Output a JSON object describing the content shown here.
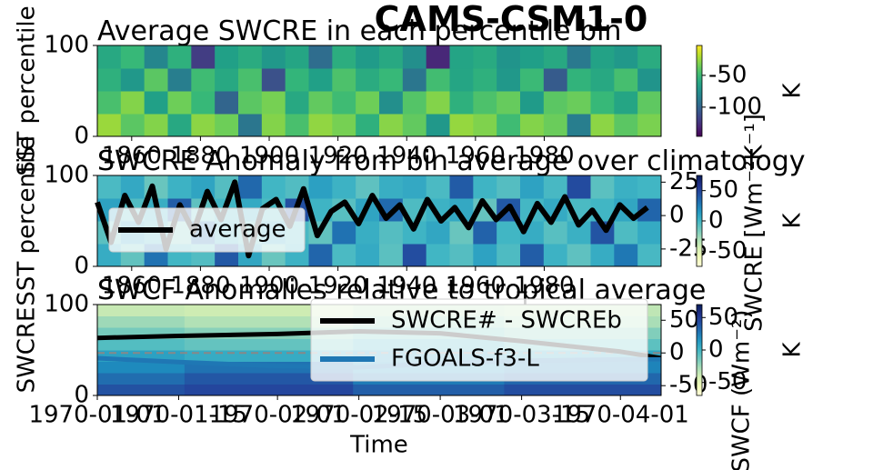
{
  "chart_data": [
    {
      "type": "heatmap",
      "suptitle": "CAMS-CSM1-0",
      "title": "Average SWCRE in each percentile bin",
      "ylabel": "SST percentile",
      "xlim": [
        1850,
        2014
      ],
      "xticks": [
        1860,
        1880,
        1900,
        1920,
        1940,
        1960,
        1980
      ],
      "ylim": [
        0,
        100
      ],
      "yticks": [
        0,
        100
      ],
      "colormap": "viridis",
      "clim": [
        -146,
        -3
      ],
      "colorbar_ticks": [
        -50,
        -100
      ],
      "colorbar_label": "K",
      "z": [
        [
          -25,
          -40,
          -30,
          -60,
          -28,
          -35,
          -90,
          -30,
          -45,
          -27,
          -33,
          -55,
          -29,
          -38,
          -70,
          -26,
          -31,
          -48,
          -30,
          -36,
          -85,
          -28,
          -40,
          -32
        ],
        [
          -45,
          -30,
          -65,
          -35,
          -50,
          -100,
          -40,
          -33,
          -60,
          -38,
          -48,
          -35,
          -75,
          -42,
          -30,
          -55,
          -44,
          -37,
          -68,
          -40,
          -36,
          -50,
          -62,
          -39
        ],
        [
          -55,
          -70,
          -40,
          -85,
          -48,
          -60,
          -45,
          -110,
          -52,
          -65,
          -44,
          -58,
          -50,
          -90,
          -47,
          -62,
          -55,
          -70,
          -49,
          -105,
          -53,
          -60,
          -46,
          -72
        ],
        [
          -60,
          -50,
          -80,
          -55,
          -120,
          -65,
          -58,
          -70,
          -62,
          -95,
          -57,
          -68,
          -60,
          -75,
          -130,
          -63,
          -59,
          -72,
          -66,
          -60,
          -88,
          -64,
          -70,
          -58
        ]
      ]
    },
    {
      "type": "heatmap",
      "title": "SWCRE Anomaly from bin average over climatology",
      "ylabel": "SST percentile",
      "xlim": [
        1850,
        2014
      ],
      "xticks": [
        1860,
        1880,
        1900,
        1920,
        1940,
        1960,
        1980
      ],
      "ylim": [
        0,
        100
      ],
      "yticks": [
        0,
        100
      ],
      "colormap": "YlGnBu",
      "clim": [
        -75,
        75
      ],
      "colorbar_ticks": [
        50,
        0,
        -50
      ],
      "colorbar_label": "K",
      "z": [
        [
          5,
          -10,
          30,
          0,
          -5,
          40,
          8,
          -12,
          2,
          35,
          -3,
          6,
          -8,
          45,
          0,
          -6,
          10,
          -4,
          38,
          2,
          -9,
          5,
          28,
          -2
        ],
        [
          -8,
          12,
          0,
          -15,
          32,
          3,
          -5,
          9,
          -2,
          -10,
          30,
          4,
          -6,
          1,
          8,
          -12,
          36,
          0,
          5,
          -7,
          3,
          42,
          -4,
          6
        ],
        [
          10,
          -5,
          4,
          38,
          -9,
          0,
          6,
          -3,
          44,
          1,
          -7,
          9,
          33,
          -4,
          2,
          7,
          -11,
          40,
          -1,
          6,
          -3,
          0,
          8,
          35
        ],
        [
          -3,
          7,
          -12,
          2,
          9,
          -6,
          34,
          0,
          -5,
          11,
          2,
          -9,
          4,
          7,
          -3,
          39,
          1,
          -6,
          10,
          -2,
          46,
          -8,
          3,
          0
        ]
      ],
      "y2lim": [
        -38,
        30
      ],
      "y2ticks": [
        25,
        0,
        -25
      ],
      "y2label": "SWCRE [Wm⁻²K⁻¹]",
      "legend": "lower left",
      "x": [
        1850,
        1854,
        1858,
        1862,
        1866,
        1870,
        1874,
        1878,
        1882,
        1886,
        1890,
        1894,
        1898,
        1902,
        1906,
        1910,
        1914,
        1918,
        1922,
        1926,
        1930,
        1934,
        1938,
        1942,
        1946,
        1950,
        1954,
        1958,
        1962,
        1966,
        1970,
        1974,
        1978,
        1982,
        1986,
        1990,
        1994,
        1998,
        2002,
        2006,
        2010
      ],
      "series": [
        {
          "name": "average",
          "color": "#000000",
          "axis": "y2",
          "values": [
            10,
            -20,
            15,
            -5,
            22,
            -25,
            8,
            -12,
            18,
            -3,
            25,
            -30,
            5,
            12,
            -8,
            20,
            -15,
            3,
            10,
            -6,
            15,
            -2,
            8,
            -10,
            12,
            -4,
            6,
            -9,
            11,
            -3,
            7,
            -12,
            9,
            -5,
            14,
            -7,
            4,
            -11,
            8,
            -2,
            6
          ]
        }
      ]
    },
    {
      "type": "heatmap",
      "title": "SWCF Anomalies relative to tropical average",
      "ylabel": "SWCRE",
      "xlabel": "Time",
      "xlim": [
        "1970-01-01",
        "1970-04-08"
      ],
      "xticks": [
        "1970-01-01",
        "1970-01-15",
        "1970-02-01",
        "1970-02-15",
        "1970-03-01",
        "1970-03-15",
        "1970-04-01"
      ],
      "ylim": [
        0,
        100
      ],
      "yticks": [
        0,
        100
      ],
      "colormap": "YlGnBu",
      "clim": [
        -70,
        70
      ],
      "colorbar_ticks": [
        50,
        0,
        -50
      ],
      "colorbar_label": "K",
      "col_edges": [
        "1970-01-01",
        "1970-01-16",
        "1970-02-14",
        "1970-03-12",
        "1970-04-08"
      ],
      "z": [
        [
          40,
          45,
          35,
          42
        ],
        [
          30,
          38,
          25,
          32
        ],
        [
          20,
          28,
          15,
          22
        ],
        [
          10,
          5,
          12,
          8
        ],
        [
          -5,
          -10,
          0,
          -8
        ],
        [
          -15,
          -20,
          -12,
          -18
        ],
        [
          -25,
          -30,
          -22,
          -28
        ],
        [
          -35,
          -38,
          -30,
          -33
        ]
      ],
      "y2lim": [
        -65,
        74
      ],
      "y2ticks": [
        50,
        0,
        -50
      ],
      "y2label": "SWCF (Wm⁻²)",
      "legend": "lower right",
      "zero_line": true,
      "x": [
        "1970-01-01",
        "1970-01-15",
        "1970-02-01",
        "1970-02-15",
        "1970-03-01",
        "1970-03-15",
        "1970-04-01",
        "1970-04-08"
      ],
      "series": [
        {
          "name": "SWCRE# - SWCREb",
          "color": "#000000",
          "axis": "y2",
          "values": [
            23,
            26,
            29,
            33,
            30,
            18,
            2,
            -8
          ]
        },
        {
          "name": "FGOALS-f3-L",
          "color": "#1f77b4",
          "axis": "y2",
          "values": [
            -8,
            -14,
            -20,
            -22,
            -16,
            -12,
            -10,
            -10
          ]
        }
      ]
    }
  ]
}
